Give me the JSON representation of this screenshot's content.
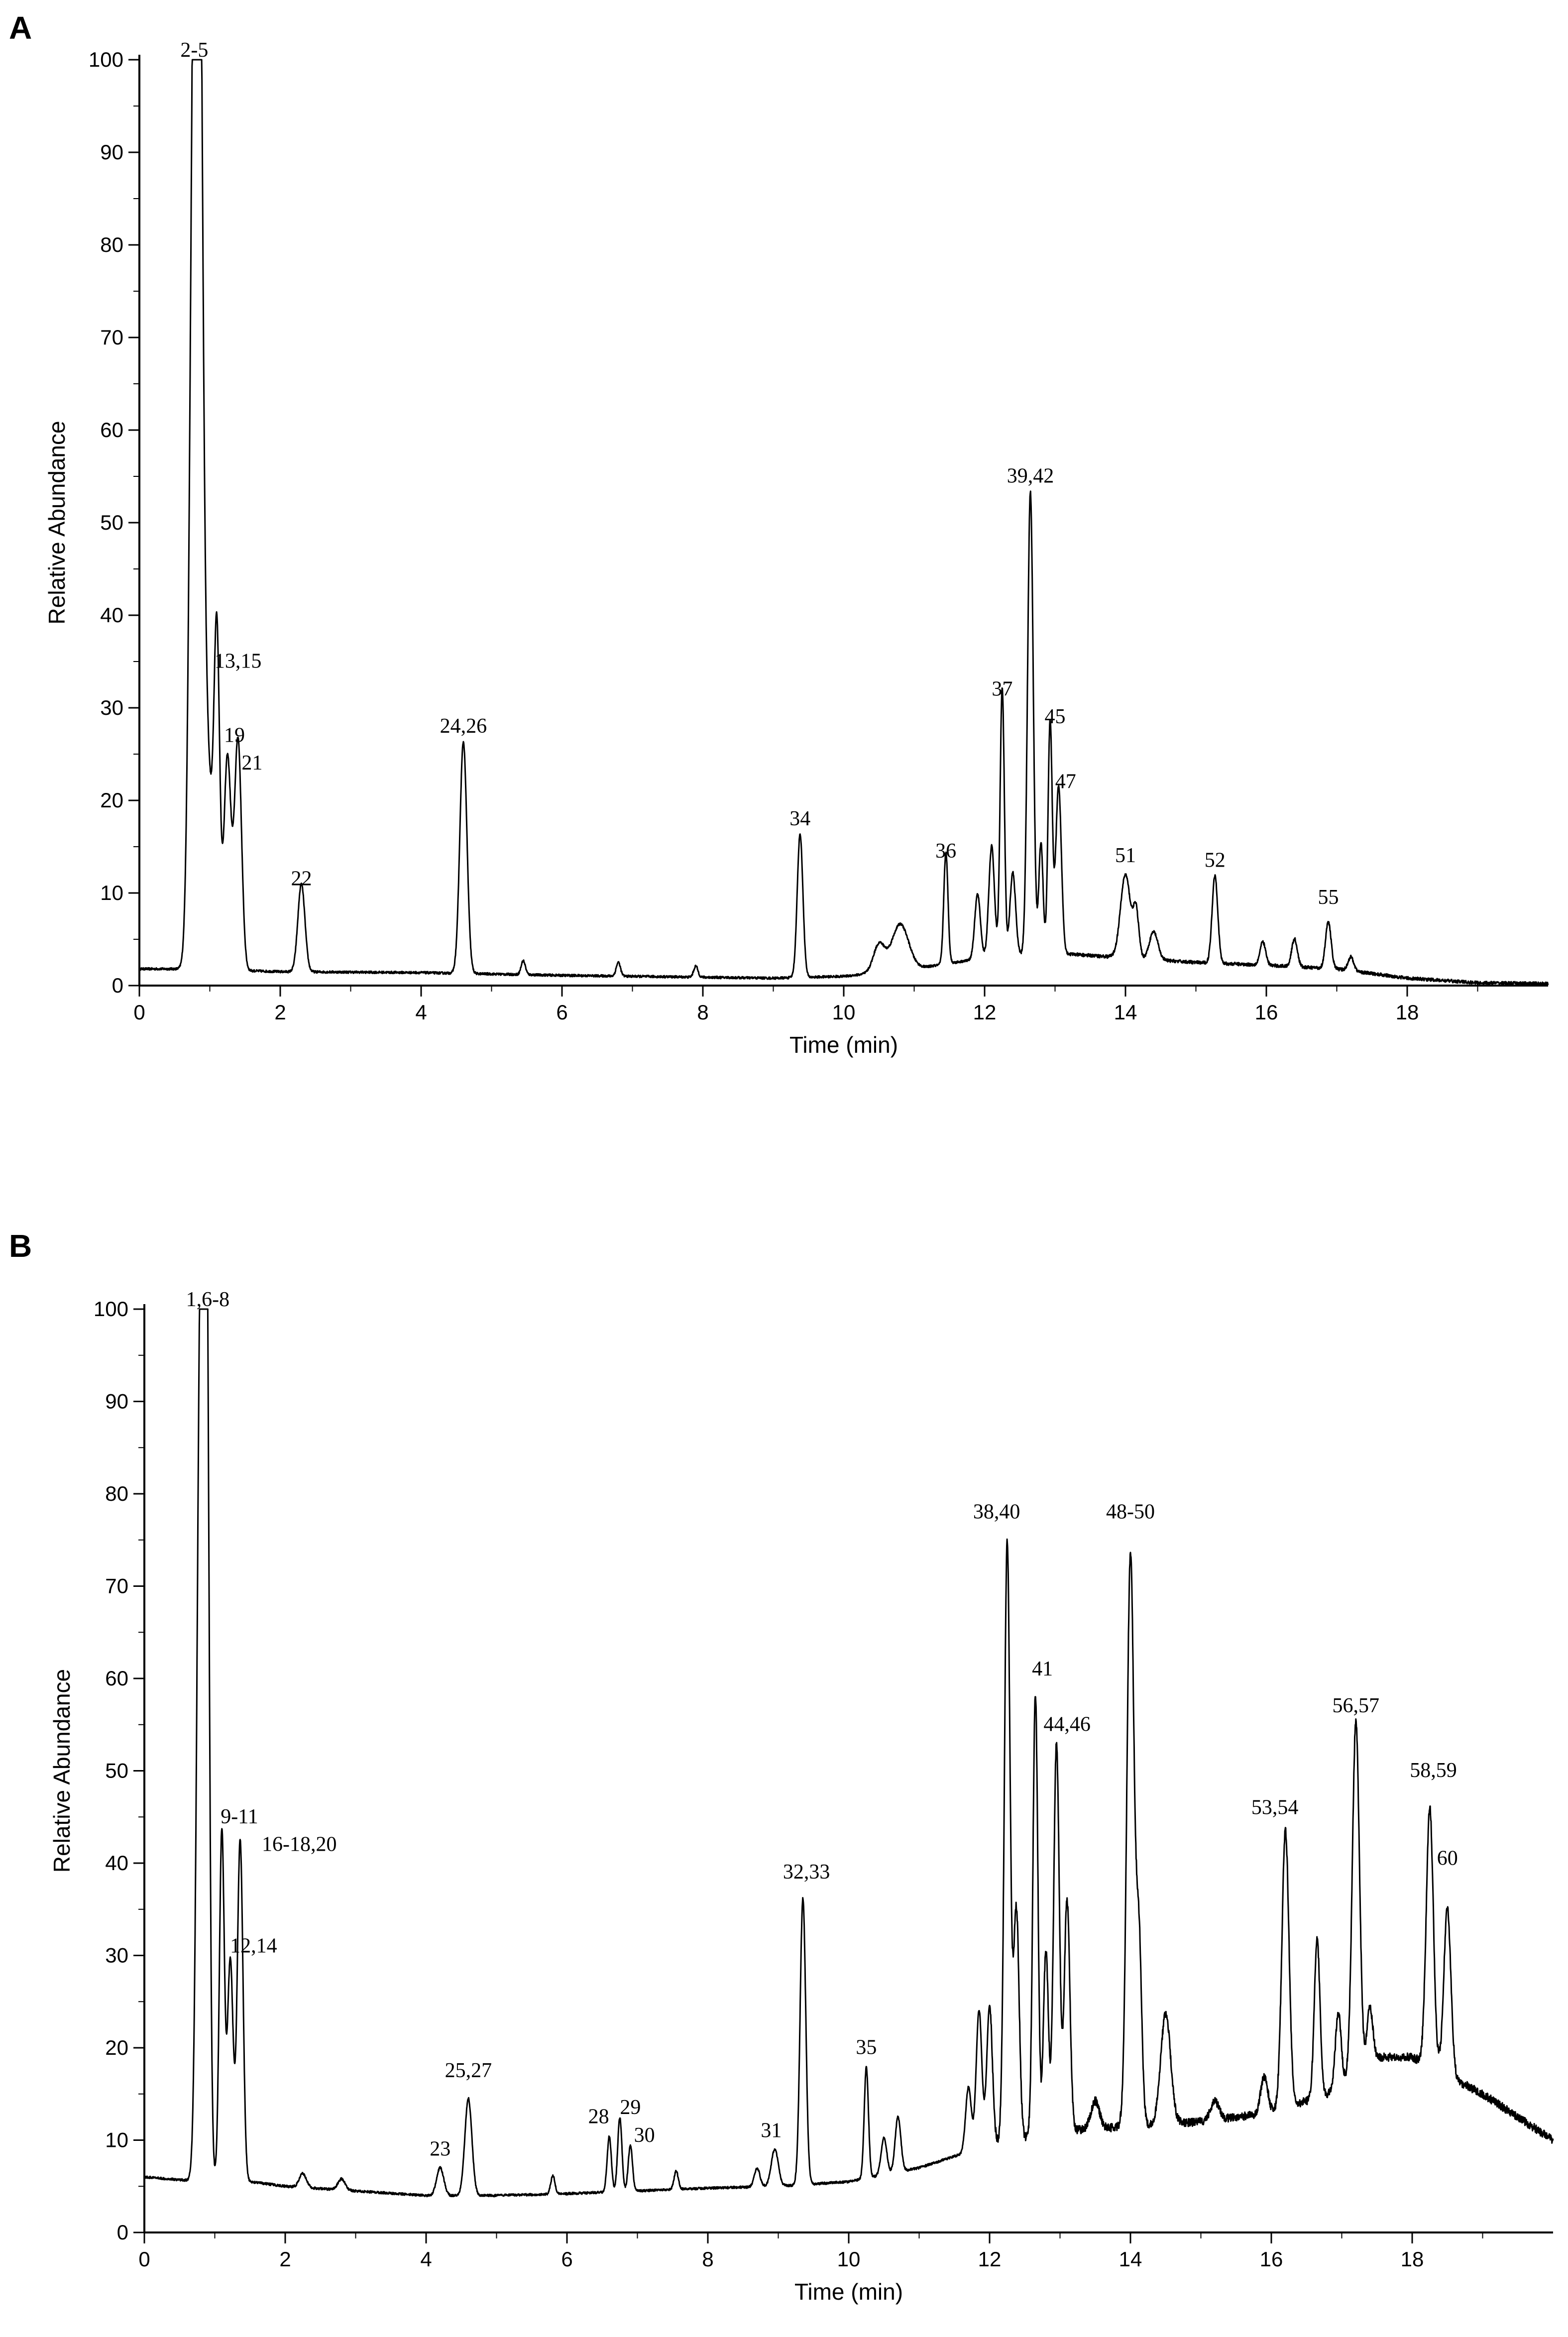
{
  "chart_data": [
    {
      "panel": "A",
      "type": "line",
      "xlabel": "Time (min)",
      "ylabel": "Relative Abundance",
      "xlim": [
        0,
        20
      ],
      "ylim": [
        0,
        100
      ],
      "xticks": [
        0,
        2,
        4,
        6,
        8,
        10,
        12,
        14,
        16,
        18
      ],
      "yticks": [
        0,
        10,
        20,
        30,
        40,
        50,
        60,
        70,
        80,
        90,
        100
      ],
      "baseline": [
        [
          0,
          1.8
        ],
        [
          0.7,
          1.8
        ],
        [
          2,
          1.5
        ],
        [
          4,
          1.4
        ],
        [
          6,
          1.1
        ],
        [
          8,
          0.9
        ],
        [
          9,
          0.8
        ],
        [
          10,
          1.0
        ],
        [
          11,
          1.8
        ],
        [
          12,
          3.0
        ],
        [
          13,
          3.5
        ],
        [
          14,
          3.0
        ],
        [
          15,
          2.5
        ],
        [
          16,
          2.2
        ],
        [
          17,
          1.8
        ],
        [
          18,
          0.8
        ],
        [
          19,
          0.3
        ],
        [
          20,
          0.2
        ]
      ],
      "peaks": [
        {
          "x": 0.78,
          "y": 100,
          "w": 0.06
        },
        {
          "x": 0.85,
          "y": 78,
          "w": 0.05
        },
        {
          "x": 0.95,
          "y": 24,
          "w": 0.08
        },
        {
          "x": 1.1,
          "y": 34,
          "w": 0.04
        },
        {
          "x": 1.25,
          "y": 23,
          "w": 0.05
        },
        {
          "x": 1.4,
          "y": 25,
          "w": 0.05
        },
        {
          "x": 2.3,
          "y": 9.5,
          "w": 0.05
        },
        {
          "x": 4.6,
          "y": 25,
          "w": 0.05
        },
        {
          "x": 5.45,
          "y": 1.5,
          "w": 0.03
        },
        {
          "x": 6.8,
          "y": 1.5,
          "w": 0.03
        },
        {
          "x": 7.9,
          "y": 1.2,
          "w": 0.03
        },
        {
          "x": 9.38,
          "y": 15.5,
          "w": 0.04
        },
        {
          "x": 10.5,
          "y": 3,
          "w": 0.08
        },
        {
          "x": 10.8,
          "y": 5,
          "w": 0.12
        },
        {
          "x": 11.45,
          "y": 12,
          "w": 0.03
        },
        {
          "x": 11.9,
          "y": 7,
          "w": 0.04
        },
        {
          "x": 12.1,
          "y": 12,
          "w": 0.04
        },
        {
          "x": 12.25,
          "y": 29,
          "w": 0.03
        },
        {
          "x": 12.4,
          "y": 9,
          "w": 0.04
        },
        {
          "x": 12.65,
          "y": 50,
          "w": 0.04
        },
        {
          "x": 12.8,
          "y": 12,
          "w": 0.03
        },
        {
          "x": 12.93,
          "y": 25,
          "w": 0.03
        },
        {
          "x": 13.05,
          "y": 18,
          "w": 0.04
        },
        {
          "x": 14.0,
          "y": 9,
          "w": 0.07
        },
        {
          "x": 14.15,
          "y": 5,
          "w": 0.04
        },
        {
          "x": 14.4,
          "y": 3,
          "w": 0.06
        },
        {
          "x": 15.27,
          "y": 9.5,
          "w": 0.04
        },
        {
          "x": 15.95,
          "y": 2.5,
          "w": 0.04
        },
        {
          "x": 16.4,
          "y": 3,
          "w": 0.04
        },
        {
          "x": 16.88,
          "y": 5,
          "w": 0.04
        },
        {
          "x": 17.2,
          "y": 1.5,
          "w": 0.04
        }
      ],
      "labels": [
        {
          "text": "2-5",
          "x": 0.78,
          "y": 100
        },
        {
          "text": "13,15",
          "x": 1.4,
          "y": 34
        },
        {
          "text": "19",
          "x": 1.35,
          "y": 26
        },
        {
          "text": "21",
          "x": 1.6,
          "y": 23
        },
        {
          "text": "22",
          "x": 2.3,
          "y": 10.5
        },
        {
          "text": "24,26",
          "x": 4.6,
          "y": 27
        },
        {
          "text": "34",
          "x": 9.38,
          "y": 17
        },
        {
          "text": "36",
          "x": 11.45,
          "y": 13.5
        },
        {
          "text": "37",
          "x": 12.25,
          "y": 31
        },
        {
          "text": "39,42",
          "x": 12.65,
          "y": 54
        },
        {
          "text": "45",
          "x": 13.0,
          "y": 28
        },
        {
          "text": "47",
          "x": 13.15,
          "y": 21
        },
        {
          "text": "51",
          "x": 14.0,
          "y": 13
        },
        {
          "text": "52",
          "x": 15.27,
          "y": 12.5
        },
        {
          "text": "55",
          "x": 16.88,
          "y": 8.5
        }
      ]
    },
    {
      "panel": "B",
      "type": "line",
      "xlabel": "Time (min)",
      "ylabel": "Relative Abundance",
      "xlim": [
        0,
        20
      ],
      "ylim": [
        0,
        100
      ],
      "xticks": [
        0,
        2,
        4,
        6,
        8,
        10,
        12,
        14,
        16,
        18
      ],
      "yticks": [
        0,
        10,
        20,
        30,
        40,
        50,
        60,
        70,
        80,
        90,
        100
      ],
      "baseline": [
        [
          0,
          6
        ],
        [
          0.7,
          5.6
        ],
        [
          1.5,
          5.5
        ],
        [
          2,
          5.0
        ],
        [
          3,
          4.5
        ],
        [
          4,
          4.0
        ],
        [
          5,
          4.0
        ],
        [
          6,
          4.2
        ],
        [
          7,
          4.5
        ],
        [
          8,
          4.8
        ],
        [
          9,
          5.0
        ],
        [
          10,
          5.5
        ],
        [
          11,
          7.0
        ],
        [
          12,
          9.5
        ],
        [
          13,
          11.0
        ],
        [
          14,
          11.5
        ],
        [
          15,
          12.0
        ],
        [
          16,
          13.0
        ],
        [
          16.8,
          15.0
        ],
        [
          17.5,
          19.0
        ],
        [
          18,
          19.0
        ],
        [
          18.5,
          17.0
        ],
        [
          19,
          15.0
        ],
        [
          19.5,
          12.5
        ],
        [
          20,
          10.0
        ]
      ],
      "peaks": [
        {
          "x": 0.8,
          "y": 96,
          "w": 0.05
        },
        {
          "x": 0.88,
          "y": 93,
          "w": 0.04
        },
        {
          "x": 1.1,
          "y": 38,
          "w": 0.035
        },
        {
          "x": 1.22,
          "y": 24,
          "w": 0.04
        },
        {
          "x": 1.36,
          "y": 37,
          "w": 0.04
        },
        {
          "x": 2.25,
          "y": 1.5,
          "w": 0.05
        },
        {
          "x": 2.8,
          "y": 1.2,
          "w": 0.05
        },
        {
          "x": 4.2,
          "y": 3,
          "w": 0.05
        },
        {
          "x": 4.6,
          "y": 10.5,
          "w": 0.05
        },
        {
          "x": 5.8,
          "y": 2,
          "w": 0.03
        },
        {
          "x": 6.6,
          "y": 6,
          "w": 0.03
        },
        {
          "x": 6.75,
          "y": 8,
          "w": 0.03
        },
        {
          "x": 6.9,
          "y": 5,
          "w": 0.03
        },
        {
          "x": 7.55,
          "y": 2,
          "w": 0.03
        },
        {
          "x": 8.7,
          "y": 2,
          "w": 0.04
        },
        {
          "x": 8.95,
          "y": 4,
          "w": 0.05
        },
        {
          "x": 9.35,
          "y": 31,
          "w": 0.04
        },
        {
          "x": 10.25,
          "y": 12,
          "w": 0.03
        },
        {
          "x": 10.5,
          "y": 4,
          "w": 0.04
        },
        {
          "x": 10.7,
          "y": 6,
          "w": 0.04
        },
        {
          "x": 11.7,
          "y": 7,
          "w": 0.04
        },
        {
          "x": 11.85,
          "y": 15,
          "w": 0.04
        },
        {
          "x": 12.0,
          "y": 15,
          "w": 0.04
        },
        {
          "x": 12.25,
          "y": 65,
          "w": 0.04
        },
        {
          "x": 12.38,
          "y": 25,
          "w": 0.04
        },
        {
          "x": 12.65,
          "y": 48,
          "w": 0.035
        },
        {
          "x": 12.8,
          "y": 20,
          "w": 0.035
        },
        {
          "x": 12.95,
          "y": 42,
          "w": 0.04
        },
        {
          "x": 13.1,
          "y": 25,
          "w": 0.04
        },
        {
          "x": 13.5,
          "y": 3,
          "w": 0.06
        },
        {
          "x": 14.0,
          "y": 62,
          "w": 0.05
        },
        {
          "x": 14.12,
          "y": 20,
          "w": 0.04
        },
        {
          "x": 14.5,
          "y": 12,
          "w": 0.07
        },
        {
          "x": 15.2,
          "y": 2,
          "w": 0.06
        },
        {
          "x": 15.9,
          "y": 4,
          "w": 0.05
        },
        {
          "x": 16.2,
          "y": 30,
          "w": 0.05
        },
        {
          "x": 16.65,
          "y": 17,
          "w": 0.04
        },
        {
          "x": 16.95,
          "y": 8,
          "w": 0.04
        },
        {
          "x": 17.2,
          "y": 38,
          "w": 0.05
        },
        {
          "x": 17.4,
          "y": 6,
          "w": 0.04
        },
        {
          "x": 18.25,
          "y": 28,
          "w": 0.05
        },
        {
          "x": 18.5,
          "y": 18,
          "w": 0.05
        }
      ],
      "labels": [
        {
          "text": "1,6-8",
          "x": 0.9,
          "y": 100
        },
        {
          "text": "9-11",
          "x": 1.35,
          "y": 44
        },
        {
          "text": "16-18,20",
          "x": 2.2,
          "y": 41
        },
        {
          "text": "12,14",
          "x": 1.55,
          "y": 30
        },
        {
          "text": "23",
          "x": 4.2,
          "y": 8
        },
        {
          "text": "25,27",
          "x": 4.6,
          "y": 16.5
        },
        {
          "text": "28",
          "x": 6.45,
          "y": 11.5
        },
        {
          "text": "29",
          "x": 6.9,
          "y": 12.5
        },
        {
          "text": "30",
          "x": 7.1,
          "y": 9.5
        },
        {
          "text": "31",
          "x": 8.9,
          "y": 10
        },
        {
          "text": "32,33",
          "x": 9.4,
          "y": 38
        },
        {
          "text": "35",
          "x": 10.25,
          "y": 19
        },
        {
          "text": "38,40",
          "x": 12.1,
          "y": 77
        },
        {
          "text": "41",
          "x": 12.75,
          "y": 60
        },
        {
          "text": "44,46",
          "x": 13.1,
          "y": 54
        },
        {
          "text": "48-50",
          "x": 14.0,
          "y": 77
        },
        {
          "text": "53,54",
          "x": 16.05,
          "y": 45
        },
        {
          "text": "56,57",
          "x": 17.2,
          "y": 56
        },
        {
          "text": "58,59",
          "x": 18.3,
          "y": 49
        },
        {
          "text": "60",
          "x": 18.5,
          "y": 39.5
        }
      ]
    }
  ]
}
